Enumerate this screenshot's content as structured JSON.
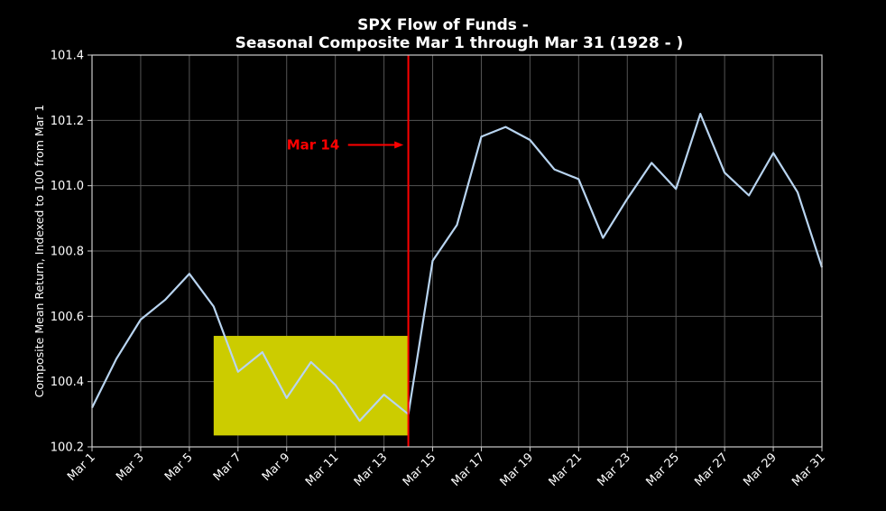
{
  "chart_data": {
    "type": "line",
    "title_line1": "SPX Flow of Funds -",
    "title_line2": "Seasonal Composite Mar 1 through Mar 31 (1928 - )",
    "ylabel": "Composite Mean Return, Indexed to 100 from Mar 1",
    "xlim": [
      1,
      31
    ],
    "ylim": [
      100.2,
      101.4
    ],
    "grid": true,
    "x_tick_days": [
      1,
      3,
      5,
      7,
      9,
      11,
      13,
      15,
      17,
      19,
      21,
      23,
      25,
      27,
      29,
      31
    ],
    "x_tick_labels": [
      "Mar 1",
      "Mar 3",
      "Mar 5",
      "Mar 7",
      "Mar 9",
      "Mar 11",
      "Mar 13",
      "Mar 15",
      "Mar 17",
      "Mar 19",
      "Mar 21",
      "Mar 23",
      "Mar 25",
      "Mar 27",
      "Mar 29",
      "Mar 31"
    ],
    "y_ticks": [
      100.2,
      100.4,
      100.6,
      100.8,
      101.0,
      101.2,
      101.4
    ],
    "y_tick_labels": [
      "100.2",
      "100.4",
      "100.6",
      "100.8",
      "101.0",
      "101.2",
      "101.4"
    ],
    "series": [
      {
        "x": [
          1,
          2,
          3,
          4,
          5,
          6,
          7,
          8,
          9,
          10,
          11,
          12,
          13,
          14,
          15,
          16,
          17,
          18,
          19,
          20,
          21,
          22,
          23,
          24,
          25,
          26,
          27,
          28,
          29,
          30,
          31
        ],
        "values": [
          100.32,
          100.47,
          100.59,
          100.65,
          100.73,
          100.63,
          100.43,
          100.49,
          100.35,
          100.46,
          100.39,
          100.28,
          100.36,
          100.3,
          100.77,
          100.88,
          101.15,
          101.18,
          101.14,
          101.05,
          101.02,
          100.84,
          100.96,
          101.07,
          100.99,
          101.22,
          101.04,
          100.97,
          101.1,
          100.98,
          100.75
        ],
        "color": "#b8d4f0"
      }
    ],
    "highlight_box": {
      "x_start": 6,
      "x_end": 14,
      "y_start": 100.235,
      "y_end": 100.54,
      "color": "#cccc00"
    },
    "vertical_line": {
      "x": 14,
      "color": "#ff0000"
    },
    "annotation": {
      "text": "Mar 14",
      "x": 9,
      "y": 101.125,
      "arrow_to_x": 13.8,
      "color": "#ff0000"
    },
    "colors": {
      "background": "#000000",
      "grid": "#555555",
      "text": "#ffffff",
      "axis": "#cccccc"
    }
  }
}
